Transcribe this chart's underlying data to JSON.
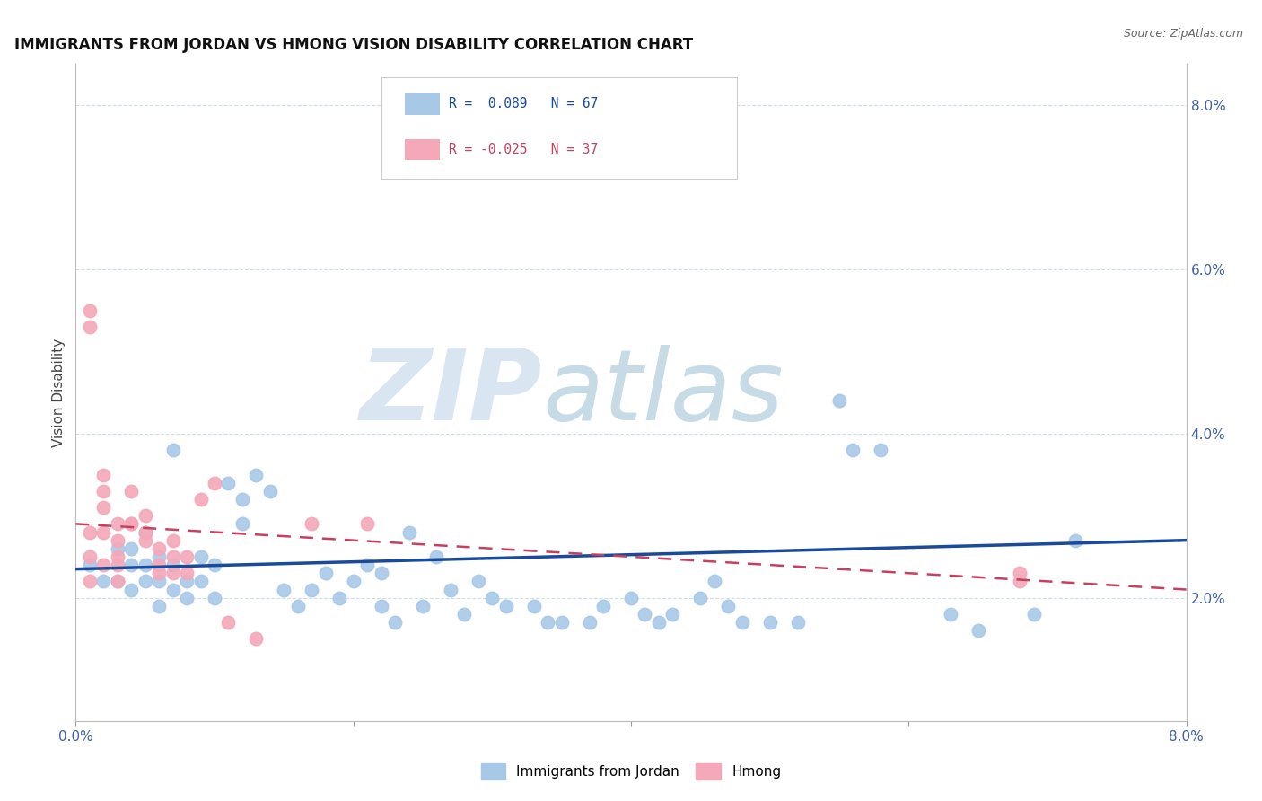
{
  "title": "IMMIGRANTS FROM JORDAN VS HMONG VISION DISABILITY CORRELATION CHART",
  "source": "Source: ZipAtlas.com",
  "ylabel": "Vision Disability",
  "xlim": [
    0.0,
    0.08
  ],
  "ylim": [
    0.005,
    0.085
  ],
  "yticks": [
    0.02,
    0.04,
    0.06,
    0.08
  ],
  "ytick_labels": [
    "2.0%",
    "4.0%",
    "6.0%",
    "8.0%"
  ],
  "xticks": [
    0.0,
    0.02,
    0.04,
    0.06,
    0.08
  ],
  "xtick_labels": [
    "0.0%",
    "",
    "",
    "",
    "8.0%"
  ],
  "blue_color": "#a8c8e8",
  "pink_color": "#f4a8b8",
  "trend_blue_color": "#1a4a9a",
  "trend_pink_color": "#c84060",
  "grid_color": "#d0dce8",
  "blue_x": [
    0.001,
    0.002,
    0.003,
    0.003,
    0.004,
    0.004,
    0.004,
    0.005,
    0.005,
    0.005,
    0.006,
    0.006,
    0.006,
    0.007,
    0.007,
    0.007,
    0.008,
    0.008,
    0.009,
    0.009,
    0.01,
    0.01,
    0.011,
    0.012,
    0.012,
    0.013,
    0.014,
    0.015,
    0.016,
    0.017,
    0.018,
    0.019,
    0.02,
    0.021,
    0.022,
    0.022,
    0.023,
    0.024,
    0.025,
    0.026,
    0.027,
    0.028,
    0.029,
    0.03,
    0.031,
    0.033,
    0.034,
    0.035,
    0.037,
    0.038,
    0.04,
    0.041,
    0.042,
    0.043,
    0.045,
    0.046,
    0.047,
    0.048,
    0.05,
    0.052,
    0.055,
    0.056,
    0.058,
    0.063,
    0.065,
    0.069,
    0.072
  ],
  "blue_y": [
    0.024,
    0.022,
    0.022,
    0.026,
    0.026,
    0.021,
    0.024,
    0.022,
    0.024,
    0.028,
    0.022,
    0.025,
    0.019,
    0.021,
    0.024,
    0.038,
    0.022,
    0.02,
    0.025,
    0.022,
    0.024,
    0.02,
    0.034,
    0.032,
    0.029,
    0.035,
    0.033,
    0.021,
    0.019,
    0.021,
    0.023,
    0.02,
    0.022,
    0.024,
    0.019,
    0.023,
    0.017,
    0.028,
    0.019,
    0.025,
    0.021,
    0.018,
    0.022,
    0.02,
    0.019,
    0.019,
    0.017,
    0.017,
    0.017,
    0.019,
    0.02,
    0.018,
    0.017,
    0.018,
    0.02,
    0.022,
    0.019,
    0.017,
    0.017,
    0.017,
    0.044,
    0.038,
    0.038,
    0.018,
    0.016,
    0.018,
    0.027
  ],
  "pink_x": [
    0.001,
    0.001,
    0.001,
    0.001,
    0.001,
    0.002,
    0.002,
    0.002,
    0.002,
    0.002,
    0.003,
    0.003,
    0.003,
    0.003,
    0.003,
    0.004,
    0.004,
    0.004,
    0.005,
    0.005,
    0.005,
    0.006,
    0.006,
    0.006,
    0.007,
    0.007,
    0.007,
    0.008,
    0.008,
    0.009,
    0.01,
    0.011,
    0.013,
    0.017,
    0.021,
    0.068,
    0.068
  ],
  "pink_y": [
    0.055,
    0.053,
    0.028,
    0.025,
    0.022,
    0.035,
    0.033,
    0.031,
    0.028,
    0.024,
    0.029,
    0.027,
    0.025,
    0.024,
    0.022,
    0.029,
    0.033,
    0.029,
    0.03,
    0.028,
    0.027,
    0.023,
    0.024,
    0.026,
    0.027,
    0.025,
    0.023,
    0.025,
    0.023,
    0.032,
    0.034,
    0.017,
    0.015,
    0.029,
    0.029,
    0.023,
    0.022
  ],
  "trend_blue_start_x": 0.0,
  "trend_blue_start_y": 0.0235,
  "trend_blue_end_x": 0.08,
  "trend_blue_end_y": 0.027,
  "trend_pink_start_x": 0.0,
  "trend_pink_start_y": 0.029,
  "trend_pink_end_x": 0.08,
  "trend_pink_end_y": 0.021
}
